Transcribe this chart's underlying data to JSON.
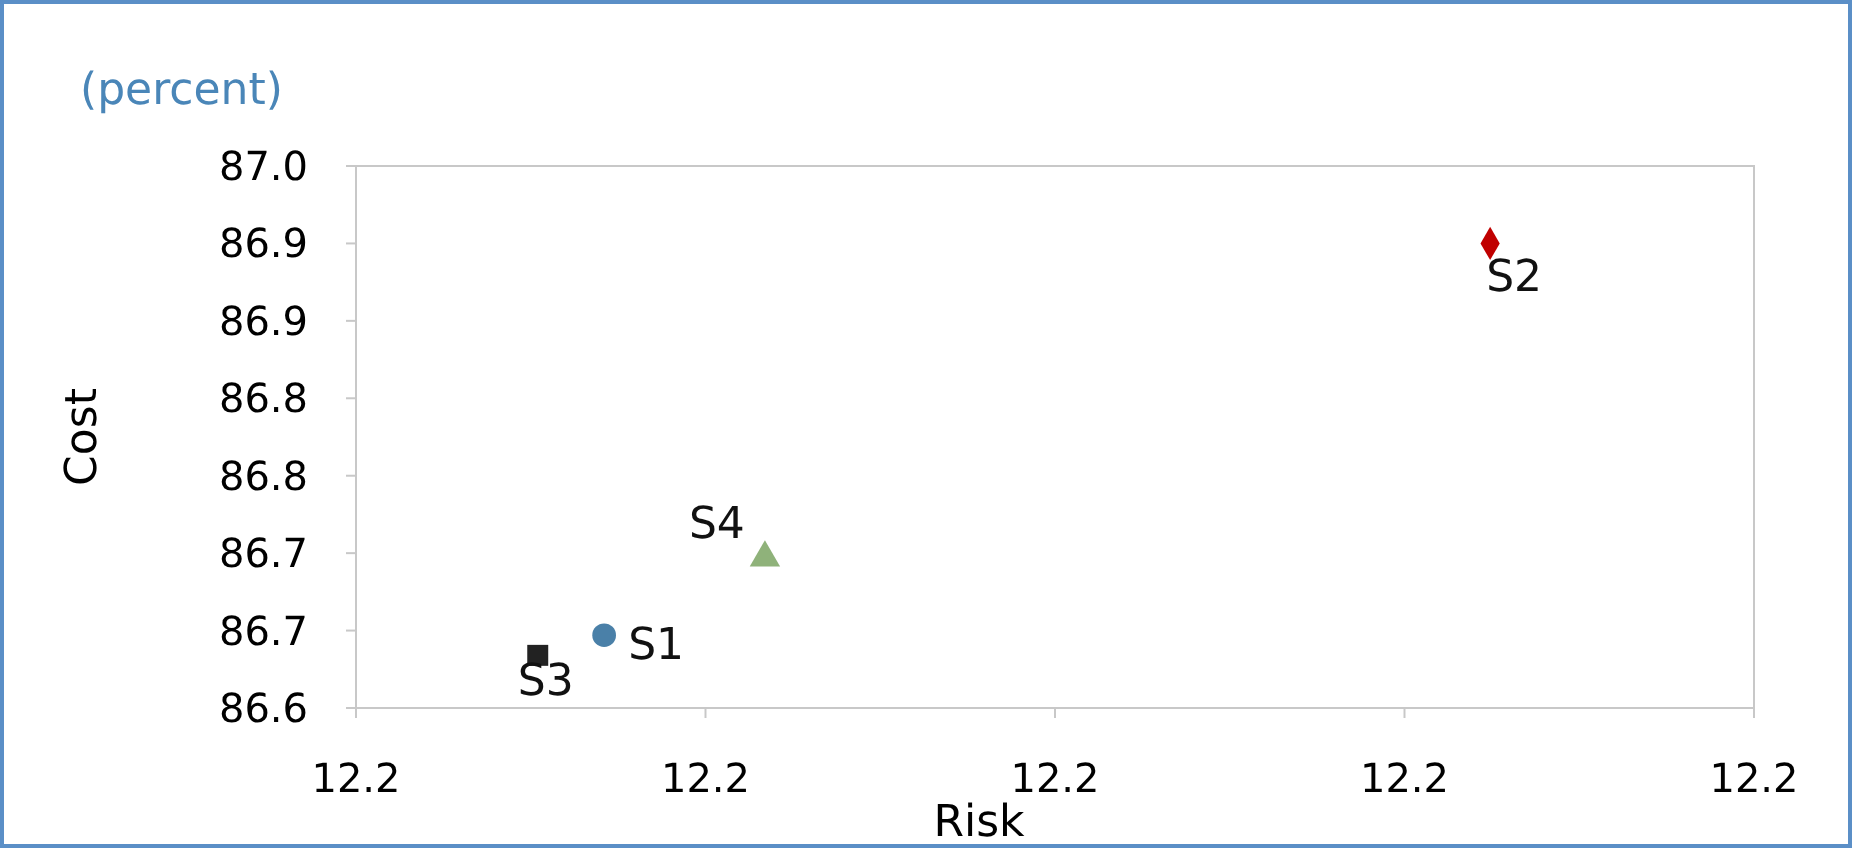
{
  "chart_data": {
    "type": "scatter",
    "subtitle": "(percent)",
    "xlabel": "Risk",
    "ylabel": "Cost",
    "xlim": [
      12.16,
      12.24
    ],
    "xticks": [
      {
        "value": 12.16,
        "label": "12.2"
      },
      {
        "value": 12.18,
        "label": "12.2"
      },
      {
        "value": 12.2,
        "label": "12.2"
      },
      {
        "value": 12.22,
        "label": "12.2"
      },
      {
        "value": 12.24,
        "label": "12.2"
      }
    ],
    "ylim": [
      86.6,
      86.95
    ],
    "yticks": [
      {
        "value": 86.6,
        "label": "86.6"
      },
      {
        "value": 86.65,
        "label": "86.7"
      },
      {
        "value": 86.7,
        "label": "86.7"
      },
      {
        "value": 86.75,
        "label": "86.8"
      },
      {
        "value": 86.8,
        "label": "86.8"
      },
      {
        "value": 86.85,
        "label": "86.9"
      },
      {
        "value": 86.9,
        "label": "86.9"
      },
      {
        "value": 86.95,
        "label": "87.0"
      }
    ],
    "grid": false,
    "series": [
      {
        "name": "S1",
        "color": "#4a80a8",
        "marker": "circle",
        "x": [
          12.1742
        ],
        "values": [
          86.647
        ]
      },
      {
        "name": "S2",
        "color": "#c00000",
        "marker": "diamond",
        "x": [
          12.2249
        ],
        "values": [
          86.9
        ]
      },
      {
        "name": "S3",
        "color": "#222222",
        "marker": "square",
        "x": [
          12.1704
        ],
        "values": [
          86.634
        ]
      },
      {
        "name": "S4",
        "color": "#8fb27a",
        "marker": "triangle",
        "x": [
          12.1834
        ],
        "values": [
          86.697
        ]
      }
    ]
  }
}
